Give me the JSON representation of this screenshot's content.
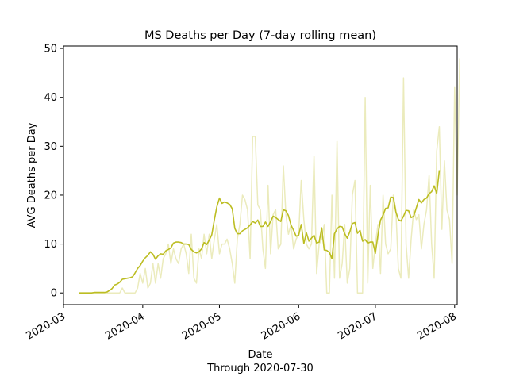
{
  "chart_data": {
    "type": "line",
    "title": "MS Deaths per Day (7-day rolling mean)",
    "xlabel": "Date",
    "xlabel_sub": "Through 2020-07-30",
    "ylabel": "AVG Deaths per Day",
    "xlim": [
      "2020-03-01",
      "2020-08-02"
    ],
    "ylim": [
      -2.4,
      50.5
    ],
    "x_ticks": [
      "2020-03-01",
      "2020-04-01",
      "2020-05-01",
      "2020-06-01",
      "2020-07-01",
      "2020-08-01"
    ],
    "x_tick_labels": [
      "2020-03",
      "2020-04",
      "2020-05",
      "2020-06",
      "2020-07",
      "2020-08"
    ],
    "y_ticks": [
      0,
      10,
      20,
      30,
      40,
      50
    ],
    "y_tick_labels": [
      "0",
      "10",
      "20",
      "30",
      "40",
      "50"
    ],
    "grid": false,
    "start_date": "2020-03-07",
    "colors": {
      "daily": "#bcbd22",
      "daily_opacity": 0.3,
      "rolling": "#bcbd22"
    },
    "series": [
      {
        "key": "daily",
        "values": [
          0,
          0,
          0,
          0,
          0,
          0,
          0,
          0,
          0,
          0,
          0,
          0,
          0,
          0,
          0,
          0,
          0,
          1,
          0,
          0,
          0,
          0,
          0,
          1,
          4,
          2,
          5,
          1,
          2,
          6,
          2,
          6,
          3,
          7,
          8,
          10,
          6,
          9,
          7,
          6,
          9,
          10,
          8,
          4,
          12,
          3,
          2,
          9,
          7,
          12,
          8,
          12,
          7,
          11,
          14,
          8,
          10,
          10,
          11,
          9,
          6,
          2,
          11,
          14,
          20,
          19,
          17,
          7,
          32,
          32,
          18,
          17,
          9,
          5,
          22,
          8,
          16,
          17,
          9,
          10,
          26,
          16,
          12,
          14,
          9,
          11,
          12,
          23,
          15,
          10,
          9,
          10,
          28,
          4,
          10,
          11,
          14,
          0,
          0,
          20,
          3,
          31,
          3,
          6,
          14,
          2,
          5,
          20,
          23,
          0,
          0,
          0,
          40,
          2,
          22,
          5,
          10,
          14,
          4,
          20,
          10,
          8,
          9,
          20,
          17,
          5,
          3,
          44,
          10,
          3,
          11,
          17,
          15,
          16,
          9,
          14,
          17,
          24,
          10,
          3,
          29,
          34,
          13,
          27,
          17,
          15,
          6,
          42,
          20,
          48
        ],
        "end_date": "2020-07-30"
      },
      {
        "key": "rolling",
        "values": [
          0,
          0,
          0,
          0,
          0,
          0,
          0.1,
          0.1,
          0.1,
          0.1,
          0.1,
          0.2,
          0.5,
          0.9,
          1.6,
          1.8,
          2.2,
          2.8,
          2.9,
          3,
          3.1,
          3.3,
          4.1,
          5,
          5.6,
          6.5,
          7.2,
          7.7,
          8.4,
          7.9,
          6.9,
          7.6,
          8,
          7.9,
          8.6,
          8.9,
          9.2,
          10.2,
          10.4,
          10.4,
          10.3,
          10,
          10,
          9.9,
          8.9,
          8.4,
          8.2,
          8.4,
          9,
          10.3,
          9.9,
          10.8,
          11.9,
          14.9,
          17.6,
          19.4,
          18.3,
          18.6,
          18.4,
          18.1,
          17.2,
          13.2,
          12.1,
          12.1,
          12.7,
          13,
          13.3,
          13.9,
          14.6,
          14.3,
          14.9,
          13.6,
          13.6,
          14.5,
          13.6,
          14.6,
          15.7,
          15.4,
          15,
          14.6,
          17,
          16.8,
          15.8,
          13.9,
          12.8,
          11.6,
          11.8,
          14,
          10.1,
          12.3,
          10.6,
          11.2,
          11.8,
          10.2,
          10.4,
          13.3,
          8.8,
          8.7,
          8.3,
          7,
          12.1,
          13.1,
          13.6,
          13.5,
          12.1,
          11.2,
          12.5,
          14.2,
          14.4,
          12.2,
          12.8,
          10.6,
          10.9,
          10.2,
          10.4,
          10.4,
          8.1,
          11.9,
          14.9,
          15.9,
          17.3,
          17.4,
          19.6,
          19.5,
          16.6,
          15,
          14.7,
          15.7,
          16.9,
          16.8,
          15.4,
          15.7,
          17.4,
          19.1,
          18.4,
          19.1,
          19.4,
          20.3,
          20.7,
          21.9,
          20.3,
          25.1
        ],
        "end_date": "2020-07-24"
      }
    ]
  }
}
